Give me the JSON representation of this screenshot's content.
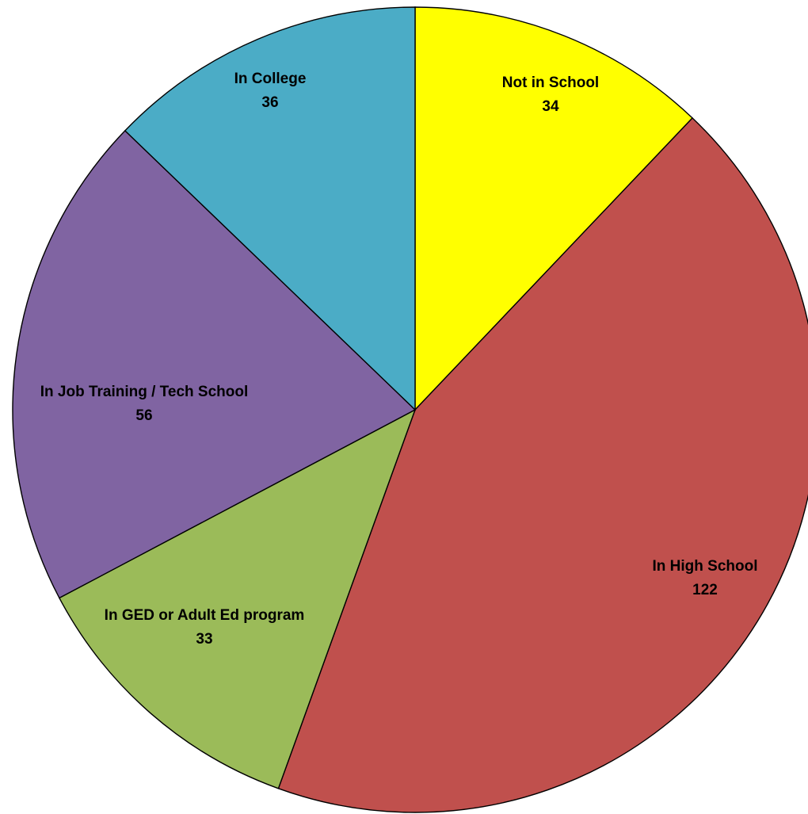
{
  "chart_data": {
    "type": "pie",
    "title": "",
    "start_angle_deg": 0,
    "direction": "clockwise",
    "slices": [
      {
        "label": "Not in School",
        "value": 34,
        "color": "#FFFF00"
      },
      {
        "label": "In High School",
        "value": 122,
        "color": "#C0504D"
      },
      {
        "label": "In GED or Adult Ed program",
        "value": 33,
        "color": "#9BBB59"
      },
      {
        "label": "In Job Training / Tech School",
        "value": 56,
        "color": "#8064A2"
      },
      {
        "label": "In College",
        "value": 36,
        "color": "#4BACC6"
      }
    ],
    "data_labels": "category name and value",
    "legend": "none"
  }
}
